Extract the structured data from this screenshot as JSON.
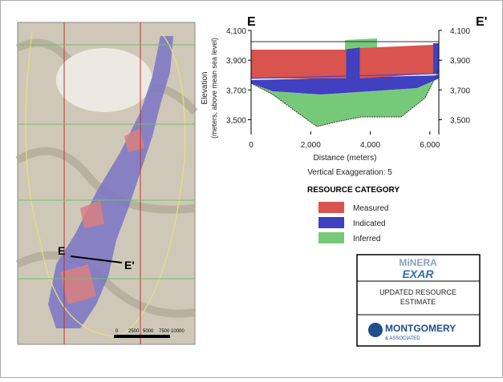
{
  "map": {
    "section_start": "E",
    "section_end": "E'",
    "scale_labels": [
      "0",
      "2500",
      "5000",
      "7500 10000"
    ]
  },
  "section": {
    "left_label": "E",
    "right_label": "E'",
    "y_label": "Elevation",
    "y_label_sub": "(meters, above mean sea level)",
    "x_label": "Distance (meters)",
    "note": "Vertical Exaggeration: 5",
    "xlim": [
      0,
      6300
    ],
    "ylim": [
      3400,
      4100
    ],
    "xticks": [
      0,
      {
        "value": 2000,
        "label": "2,000"
      },
      {
        "value": 4000,
        "label": "4,000"
      },
      {
        "value": 6000,
        "label": "6,000"
      }
    ],
    "yticks": [
      {
        "value": 3500,
        "label": "3,500"
      },
      {
        "value": 3700,
        "label": "3,700"
      },
      {
        "value": 3900,
        "label": "3,900"
      },
      {
        "value": 4100,
        "label": "4,100"
      }
    ]
  },
  "legend": {
    "title": "RESOURCE CATEGORY",
    "items": [
      {
        "name": "Measured",
        "color": "#d9534f"
      },
      {
        "name": "Indicated",
        "color": "#4040c0"
      },
      {
        "name": "Inferred",
        "color": "#77c97a"
      }
    ]
  },
  "logo": {
    "name_top": "MiNERA",
    "name_bottom": "EXAR",
    "caption_1": "UPDATED RESOURCE",
    "caption_2": "ESTIMATE",
    "company": "MONTGOMERY",
    "company_sub": "& ASSOCIATED"
  }
}
